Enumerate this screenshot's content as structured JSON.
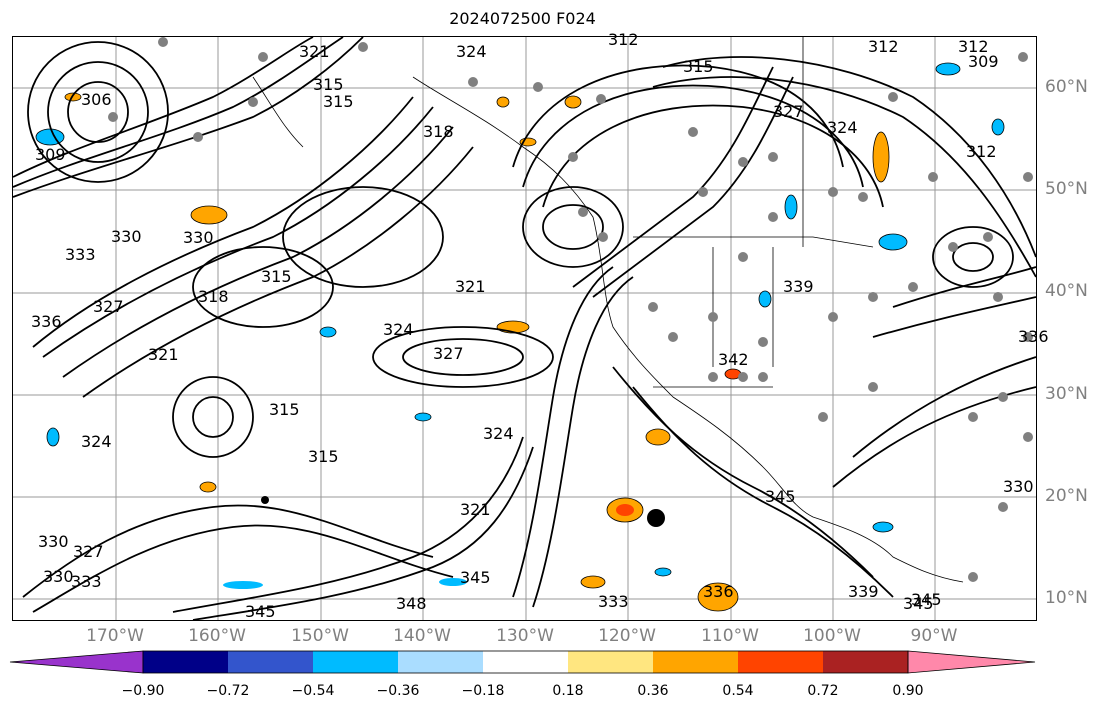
{
  "title": "2024072500 F024",
  "lat_labels": [
    "60°N",
    "50°N",
    "40°N",
    "30°N",
    "20°N",
    "10°N"
  ],
  "lon_labels": [
    "170°W",
    "160°W",
    "150°W",
    "140°W",
    "130°W",
    "120°W",
    "110°W",
    "100°W",
    "90°W"
  ],
  "colorbar": {
    "colors": [
      "#9933cc",
      "#000088",
      "#3355cc",
      "#00bbff",
      "#aaddff",
      "#ffffff",
      "#ffe680",
      "#ffa500",
      "#ff4400",
      "#aa2222",
      "#ff88aa"
    ],
    "tick_labels": [
      "−0.90",
      "−0.72",
      "−0.54",
      "−0.36",
      "−0.18",
      "0.18",
      "0.36",
      "0.54",
      "0.72",
      "0.90"
    ]
  },
  "contour_labels": [
    "306",
    "309",
    "312",
    "315",
    "318",
    "321",
    "324",
    "327",
    "330",
    "333",
    "336",
    "339",
    "342",
    "345",
    "348"
  ],
  "map_labels": [
    {
      "text": "306"
    },
    {
      "text": "309"
    },
    {
      "text": "333"
    },
    {
      "text": "330"
    },
    {
      "text": "330"
    },
    {
      "text": "336"
    },
    {
      "text": "327"
    },
    {
      "text": "318"
    },
    {
      "text": "315"
    },
    {
      "text": "321"
    },
    {
      "text": "324"
    },
    {
      "text": "315"
    },
    {
      "text": "315"
    },
    {
      "text": "315"
    },
    {
      "text": "321"
    },
    {
      "text": "324"
    },
    {
      "text": "315"
    },
    {
      "text": "318"
    },
    {
      "text": "321"
    },
    {
      "text": "324"
    },
    {
      "text": "327"
    },
    {
      "text": "324"
    },
    {
      "text": "321"
    },
    {
      "text": "345"
    },
    {
      "text": "348"
    },
    {
      "text": "333"
    },
    {
      "text": "345"
    },
    {
      "text": "342"
    },
    {
      "text": "345"
    },
    {
      "text": "345"
    },
    {
      "text": "330"
    },
    {
      "text": "312"
    },
    {
      "text": "327"
    },
    {
      "text": "324"
    },
    {
      "text": "312"
    },
    {
      "text": "309"
    },
    {
      "text": "312"
    },
    {
      "text": "315"
    },
    {
      "text": "312"
    },
    {
      "text": "330"
    },
    {
      "text": "327"
    },
    {
      "text": "336"
    },
    {
      "text": "345"
    },
    {
      "text": "330"
    },
    {
      "text": "339"
    },
    {
      "text": "336"
    },
    {
      "text": "333"
    },
    {
      "text": "339"
    }
  ]
}
